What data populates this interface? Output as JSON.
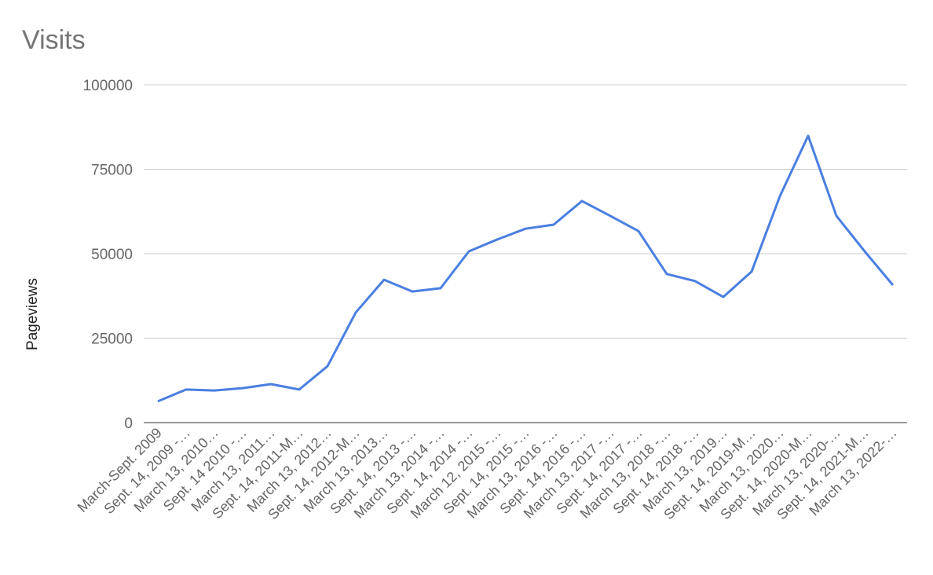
{
  "chart_data": {
    "type": "line",
    "title": "Visits",
    "y_label": "Pageviews",
    "categories": [
      "March-Sept. 2009",
      "Sept. 14, 2009 -…",
      "March 13, 2010…",
      "Sept. 14 2010 -…",
      "March 13, 2011…",
      "Sept. 14, 2011-M…",
      "March 13, 2012…",
      "Sept. 14, 2012-M…",
      "March 13, 2013…",
      "Sept. 14, 2013 -…",
      "March 13, 2014 -…",
      "Sept. 14, 2014 -…",
      "March 12, 2015 -…",
      "Sept. 14, 2015 -…",
      "March 13, 2016 -…",
      "Sept. 14, 2016 -…",
      "March 13, 2017 -…",
      "Sept. 14, 2017 -…",
      "March 13, 2018 -…",
      "Sept. 14, 2018 -…",
      "March 13, 2019…",
      "Sept. 14, 2019-M…",
      "March 13, 2020…",
      "Sept. 14, 2020-M…",
      "March 13, 2020-…",
      "Sept. 14, 2021-M…",
      "March 13, 2022-…"
    ],
    "series": [
      {
        "name": "Pageviews",
        "color": "#4a7fe0",
        "values": [
          6300,
          9800,
          9500,
          10200,
          11400,
          9800,
          16700,
          32600,
          42300,
          38800,
          39800,
          50700,
          54200,
          57400,
          58600,
          65600,
          61200,
          56700,
          44000,
          41900,
          37200,
          44700,
          67000,
          84900,
          61200,
          50700,
          40700
        ]
      }
    ],
    "ylim": [
      0,
      100000
    ],
    "yticks": [
      0,
      25000,
      50000,
      75000,
      100000
    ],
    "grid": true
  }
}
